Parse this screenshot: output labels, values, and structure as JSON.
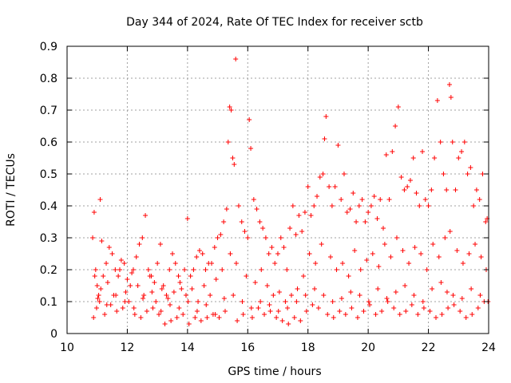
{
  "chart_data": {
    "type": "scatter",
    "title": "Day 344 of 2024, Rate Of TEC Index for receiver sctb",
    "xlabel": "GPS time / hours",
    "ylabel": "ROTI / TECUs",
    "xlim": [
      10,
      24
    ],
    "ylim": [
      0,
      0.9
    ],
    "xticks": [
      10,
      12,
      14,
      16,
      18,
      20,
      22,
      24
    ],
    "yticks": [
      0,
      0.1,
      0.2,
      0.3,
      0.4,
      0.5,
      0.6,
      0.7,
      0.8,
      0.9
    ],
    "xtick_labels": [
      "10",
      "12",
      "14",
      "16",
      "18",
      "20",
      "22",
      "24"
    ],
    "ytick_labels": [
      "0",
      "0.1",
      "0.2",
      "0.3",
      "0.4",
      "0.5",
      "0.6",
      "0.7",
      "0.8",
      "0.9"
    ],
    "grid": true,
    "marker": "plus",
    "color": "#ff0000",
    "series": [
      {
        "name": "ROTI",
        "x": [
          10.85,
          10.9,
          10.95,
          11.0,
          11.05,
          11.1,
          11.15,
          11.2,
          11.3,
          11.4,
          11.5,
          11.6,
          11.7,
          11.8,
          11.9,
          12.0,
          12.1,
          12.2,
          12.3,
          12.4,
          12.5,
          12.6,
          12.7,
          12.8,
          12.9,
          13.0,
          13.1,
          13.2,
          13.3,
          13.4,
          13.5,
          13.6,
          13.7,
          13.8,
          13.9,
          14.0,
          14.1,
          14.2,
          14.3,
          14.4,
          14.5,
          14.6,
          14.7,
          14.8,
          14.9,
          15.0,
          15.1,
          15.2,
          15.3,
          15.35,
          15.4,
          15.45,
          15.5,
          15.55,
          15.6,
          15.7,
          15.8,
          15.9,
          16.0,
          16.05,
          16.1,
          16.2,
          16.3,
          16.4,
          16.5,
          16.6,
          16.7,
          16.8,
          16.9,
          17.0,
          17.1,
          17.2,
          17.3,
          17.4,
          17.5,
          17.6,
          17.7,
          17.8,
          17.9,
          18.0,
          18.1,
          18.2,
          18.3,
          18.4,
          18.5,
          18.55,
          18.6,
          18.7,
          18.8,
          18.9,
          19.0,
          19.1,
          19.2,
          19.3,
          19.4,
          19.5,
          19.6,
          19.7,
          19.8,
          19.9,
          20.0,
          20.1,
          20.2,
          20.3,
          20.4,
          20.5,
          20.6,
          20.7,
          20.8,
          20.9,
          21.0,
          21.1,
          21.2,
          21.3,
          21.4,
          21.5,
          21.6,
          21.7,
          21.8,
          21.9,
          22.0,
          22.1,
          22.2,
          22.3,
          22.4,
          22.5,
          22.6,
          22.7,
          22.75,
          22.8,
          22.9,
          23.0,
          23.1,
          23.2,
          23.3,
          23.4,
          23.5,
          23.6,
          23.7,
          23.8,
          23.9,
          23.95,
          10.88,
          10.98,
          11.08,
          11.25,
          11.45,
          11.65,
          11.85,
          12.05,
          12.25,
          12.45,
          12.65,
          12.85,
          13.05,
          13.25,
          13.45,
          13.65,
          13.85,
          14.05,
          14.25,
          14.45,
          14.65,
          14.85,
          15.05,
          15.25,
          15.65,
          15.85,
          16.15,
          16.35,
          16.55,
          16.75,
          16.95,
          17.15,
          17.35,
          17.55,
          17.75,
          17.95,
          18.15,
          18.35,
          18.65,
          18.85,
          19.05,
          19.25,
          19.45,
          19.65,
          19.85,
          20.05,
          20.25,
          20.45,
          20.65,
          20.85,
          21.05,
          21.25,
          21.45,
          21.65,
          21.85,
          22.05,
          22.25,
          22.45,
          22.65,
          22.85,
          23.05,
          23.25,
          23.45,
          23.65,
          23.85,
          10.92,
          11.12,
          11.35,
          11.55,
          11.75,
          11.95,
          12.15,
          12.35,
          12.55,
          12.75,
          12.95,
          13.15,
          13.35,
          13.55,
          13.75,
          13.95,
          14.15,
          14.35,
          14.55,
          14.75,
          14.95,
          15.15,
          15.42,
          15.62,
          15.95,
          16.25,
          16.45,
          16.65,
          16.85,
          17.05,
          17.25,
          17.45,
          17.65,
          17.85,
          18.05,
          18.25,
          18.45,
          18.75,
          18.95,
          19.15,
          19.35,
          19.55,
          19.75,
          19.95,
          20.15,
          20.35,
          20.55,
          20.75,
          20.95,
          21.15,
          21.35,
          21.55,
          21.75,
          21.95,
          22.15,
          22.35,
          22.55,
          22.72,
          22.95,
          23.15,
          23.35,
          23.55,
          23.75,
          23.92,
          11.02,
          11.32,
          11.62,
          11.92,
          12.22,
          12.52,
          12.82,
          13.12,
          13.42,
          13.72,
          14.02,
          14.32,
          14.62,
          14.92,
          15.22,
          15.52,
          15.82,
          16.12,
          16.42,
          16.72,
          17.02,
          17.32,
          17.62,
          17.92,
          18.22,
          18.52,
          18.82,
          19.12,
          19.42,
          19.72,
          20.02,
          20.32,
          20.62,
          20.92,
          21.22,
          21.52,
          21.82,
          22.12,
          22.42,
          22.62,
          22.82,
          23.12,
          23.42,
          23.72,
          23.98
        ],
        "y": [
          0.3,
          0.38,
          0.2,
          0.15,
          0.12,
          0.42,
          0.29,
          0.18,
          0.22,
          0.27,
          0.25,
          0.2,
          0.18,
          0.23,
          0.22,
          0.17,
          0.15,
          0.2,
          0.24,
          0.28,
          0.3,
          0.37,
          0.2,
          0.18,
          0.16,
          0.22,
          0.28,
          0.15,
          0.12,
          0.2,
          0.25,
          0.22,
          0.18,
          0.14,
          0.2,
          0.36,
          0.18,
          0.2,
          0.24,
          0.26,
          0.25,
          0.2,
          0.22,
          0.22,
          0.27,
          0.3,
          0.31,
          0.35,
          0.39,
          0.6,
          0.71,
          0.7,
          0.55,
          0.53,
          0.86,
          0.4,
          0.35,
          0.32,
          0.3,
          0.67,
          0.58,
          0.42,
          0.39,
          0.35,
          0.33,
          0.3,
          0.25,
          0.27,
          0.22,
          0.25,
          0.3,
          0.27,
          0.2,
          0.33,
          0.4,
          0.31,
          0.37,
          0.32,
          0.38,
          0.46,
          0.37,
          0.4,
          0.43,
          0.49,
          0.5,
          0.61,
          0.68,
          0.46,
          0.4,
          0.46,
          0.59,
          0.42,
          0.5,
          0.38,
          0.39,
          0.44,
          0.35,
          0.4,
          0.42,
          0.35,
          0.38,
          0.4,
          0.43,
          0.36,
          0.42,
          0.33,
          0.56,
          0.42,
          0.57,
          0.65,
          0.71,
          0.49,
          0.45,
          0.46,
          0.48,
          0.55,
          0.44,
          0.4,
          0.57,
          0.42,
          0.4,
          0.45,
          0.55,
          0.73,
          0.6,
          0.5,
          0.45,
          0.78,
          0.74,
          0.6,
          0.45,
          0.55,
          0.57,
          0.6,
          0.5,
          0.52,
          0.4,
          0.45,
          0.42,
          0.5,
          0.35,
          0.36,
          0.05,
          0.08,
          0.1,
          0.06,
          0.09,
          0.07,
          0.08,
          0.1,
          0.06,
          0.05,
          0.07,
          0.08,
          0.06,
          0.03,
          0.04,
          0.05,
          0.06,
          0.03,
          0.05,
          0.04,
          0.05,
          0.06,
          0.05,
          0.07,
          0.04,
          0.06,
          0.05,
          0.08,
          0.06,
          0.07,
          0.05,
          0.04,
          0.03,
          0.05,
          0.04,
          0.07,
          0.09,
          0.08,
          0.06,
          0.05,
          0.07,
          0.06,
          0.08,
          0.05,
          0.07,
          0.09,
          0.06,
          0.07,
          0.1,
          0.08,
          0.06,
          0.07,
          0.09,
          0.06,
          0.08,
          0.07,
          0.05,
          0.06,
          0.08,
          0.09,
          0.07,
          0.05,
          0.06,
          0.08,
          0.1,
          0.18,
          0.14,
          0.16,
          0.12,
          0.2,
          0.13,
          0.19,
          0.15,
          0.12,
          0.18,
          0.1,
          0.14,
          0.11,
          0.13,
          0.16,
          0.12,
          0.14,
          0.1,
          0.15,
          0.12,
          0.17,
          0.2,
          0.25,
          0.22,
          0.18,
          0.16,
          0.2,
          0.15,
          0.12,
          0.13,
          0.1,
          0.12,
          0.14,
          0.18,
          0.25,
          0.22,
          0.28,
          0.24,
          0.2,
          0.22,
          0.18,
          0.26,
          0.2,
          0.23,
          0.25,
          0.21,
          0.28,
          0.24,
          0.3,
          0.26,
          0.22,
          0.27,
          0.25,
          0.2,
          0.28,
          0.24,
          0.3,
          0.32,
          0.26,
          0.22,
          0.25,
          0.28,
          0.24,
          0.2,
          0.11,
          0.09,
          0.12,
          0.1,
          0.08,
          0.11,
          0.13,
          0.07,
          0.09,
          0.08,
          0.1,
          0.07,
          0.09,
          0.06,
          0.11,
          0.12,
          0.1,
          0.08,
          0.1,
          0.09,
          0.07,
          0.08,
          0.1,
          0.12,
          0.14,
          0.12,
          0.1,
          0.11,
          0.13,
          0.12,
          0.1,
          0.14,
          0.11,
          0.13,
          0.15,
          0.12,
          0.1,
          0.14,
          0.16,
          0.13,
          0.12,
          0.11,
          0.14,
          0.12,
          0.1
        ]
      }
    ]
  }
}
